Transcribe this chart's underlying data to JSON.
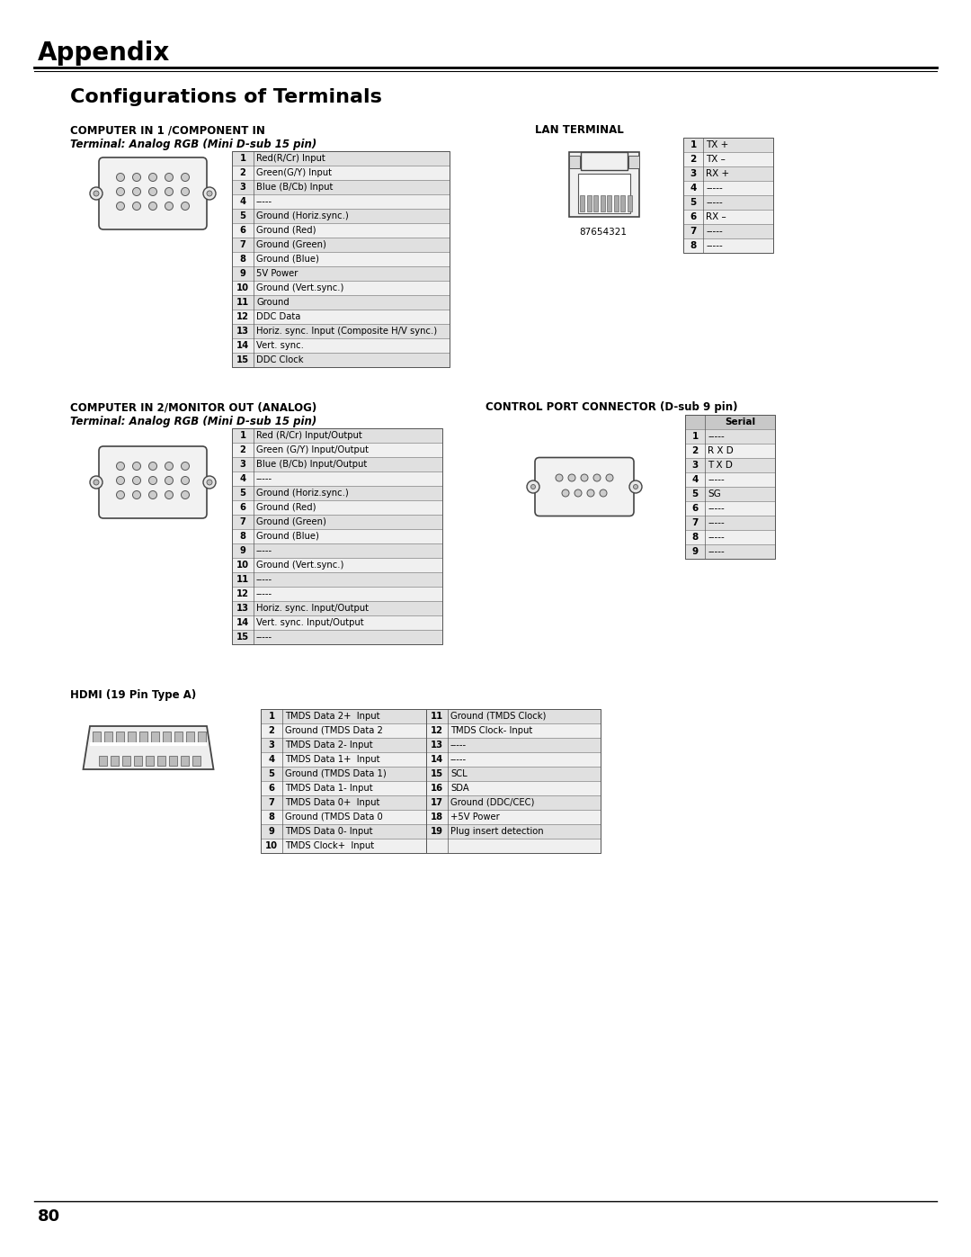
{
  "page_title": "Appendix",
  "section_title": "Configurations of Terminals",
  "bg_color": "#ffffff",
  "text_color": "#000000",
  "table_header_bg": "#c8c8c8",
  "table_row_bg_odd": "#e0e0e0",
  "table_row_bg_even": "#f0f0f0",
  "table_border": "#808080",
  "section1_title": "COMPUTER IN 1 /COMPONENT IN",
  "section1_subtitle": "Terminal: Analog RGB (Mini D-sub 15 pin)",
  "section1_rows": [
    [
      "1",
      "Red(R/Cr) Input"
    ],
    [
      "2",
      "Green(G/Y) Input"
    ],
    [
      "3",
      "Blue (B/Cb) Input"
    ],
    [
      "4",
      "-----"
    ],
    [
      "5",
      "Ground (Horiz.sync.)"
    ],
    [
      "6",
      "Ground (Red)"
    ],
    [
      "7",
      "Ground (Green)"
    ],
    [
      "8",
      "Ground (Blue)"
    ],
    [
      "9",
      "5V Power"
    ],
    [
      "10",
      "Ground (Vert.sync.)"
    ],
    [
      "11",
      "Ground"
    ],
    [
      "12",
      "DDC Data"
    ],
    [
      "13",
      "Horiz. sync. Input (Composite H/V sync.)"
    ],
    [
      "14",
      "Vert. sync."
    ],
    [
      "15",
      "DDC Clock"
    ]
  ],
  "lan_title": "LAN TERMINAL",
  "lan_rows": [
    [
      "1",
      "TX +"
    ],
    [
      "2",
      "TX –"
    ],
    [
      "3",
      "RX +"
    ],
    [
      "4",
      "-----"
    ],
    [
      "5",
      "-----"
    ],
    [
      "6",
      "RX –"
    ],
    [
      "7",
      "-----"
    ],
    [
      "8",
      "-----"
    ]
  ],
  "lan_label": "87654321",
  "section2_title": "COMPUTER IN 2/MONITOR OUT (ANALOG)",
  "section2_subtitle": "Terminal: Analog RGB (Mini D-sub 15 pin)",
  "section2_rows": [
    [
      "1",
      "Red (R/Cr) Input/Output"
    ],
    [
      "2",
      "Green (G/Y) Input/Output"
    ],
    [
      "3",
      "Blue (B/Cb) Input/Output"
    ],
    [
      "4",
      "-----"
    ],
    [
      "5",
      "Ground (Horiz.sync.)"
    ],
    [
      "6",
      "Ground (Red)"
    ],
    [
      "7",
      "Ground (Green)"
    ],
    [
      "8",
      "Ground (Blue)"
    ],
    [
      "9",
      "-----"
    ],
    [
      "10",
      "Ground (Vert.sync.)"
    ],
    [
      "11",
      "-----"
    ],
    [
      "12",
      "-----"
    ],
    [
      "13",
      "Horiz. sync. Input/Output"
    ],
    [
      "14",
      "Vert. sync. Input/Output"
    ],
    [
      "15",
      "-----"
    ]
  ],
  "control_title": "CONTROL PORT CONNECTOR (D-sub 9 pin)",
  "control_header": "Serial",
  "control_rows": [
    [
      "1",
      "-----"
    ],
    [
      "2",
      "R X D"
    ],
    [
      "3",
      "T X D"
    ],
    [
      "4",
      "-----"
    ],
    [
      "5",
      "SG"
    ],
    [
      "6",
      "-----"
    ],
    [
      "7",
      "-----"
    ],
    [
      "8",
      "-----"
    ],
    [
      "9",
      "-----"
    ]
  ],
  "hdmi_title": "HDMI (19 Pin Type A)",
  "hdmi_rows_left": [
    [
      "1",
      "TMDS Data 2+  Input"
    ],
    [
      "2",
      "Ground (TMDS Data 2"
    ],
    [
      "3",
      "TMDS Data 2- Input"
    ],
    [
      "4",
      "TMDS Data 1+  Input"
    ],
    [
      "5",
      "Ground (TMDS Data 1)"
    ],
    [
      "6",
      "TMDS Data 1- Input"
    ],
    [
      "7",
      "TMDS Data 0+  Input"
    ],
    [
      "8",
      "Ground (TMDS Data 0"
    ],
    [
      "9",
      "TMDS Data 0- Input"
    ],
    [
      "10",
      "TMDS Clock+  Input"
    ]
  ],
  "hdmi_rows_right": [
    [
      "11",
      "Ground (TMDS Clock)"
    ],
    [
      "12",
      "TMDS Clock- Input"
    ],
    [
      "13",
      "-----"
    ],
    [
      "14",
      "-----"
    ],
    [
      "15",
      "SCL"
    ],
    [
      "16",
      "SDA"
    ],
    [
      "17",
      "Ground (DDC/CEC)"
    ],
    [
      "18",
      "+5V Power"
    ],
    [
      "19",
      "Plug insert detection"
    ],
    [
      "",
      ""
    ]
  ],
  "page_number": "80"
}
